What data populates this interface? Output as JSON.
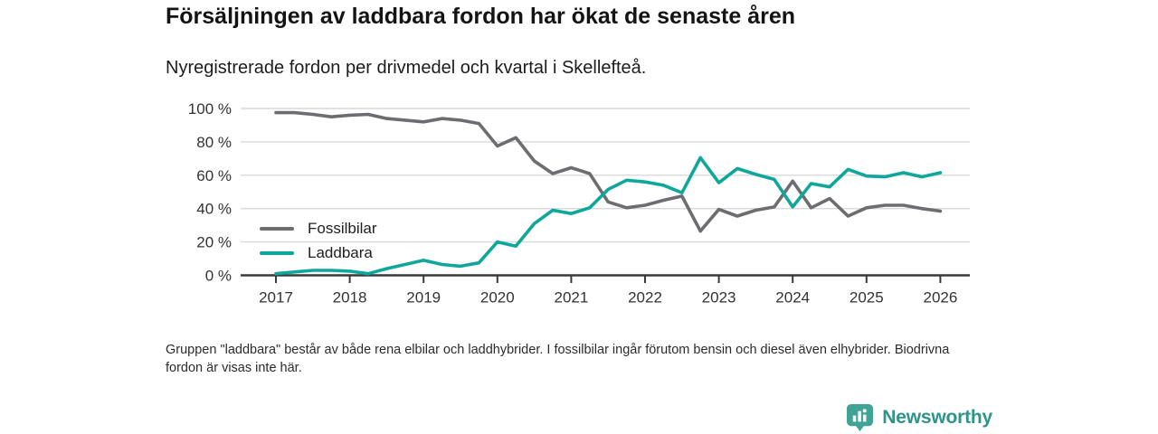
{
  "title": "Försäljningen av laddbara fordon har ökat de senaste åren",
  "subtitle": "Nyregistrerade fordon per drivmedel och kvartal i Skellefteå.",
  "footnote": "Gruppen \"laddbara\" består av både rena elbilar och laddhybrider. I fossilbilar ingår förutom bensin och diesel även elhybrider. Biodrivna fordon är visas inte här.",
  "logo": {
    "text": "Newsworthy",
    "icon": "bar-chart-pin-icon"
  },
  "colors": {
    "fossil_line": "#6d6d71",
    "laddbara_line": "#0fa79b",
    "gridline": "#d9d9d9",
    "axis": "#3a3a3e",
    "tick_label": "#333333",
    "logo_icon": "#41a396",
    "logo_text": "#2d948b"
  },
  "chart_data": {
    "type": "line",
    "x_unit": "quarter",
    "frequency": "quarterly",
    "x_start": "2017 Q1",
    "x_end": "2026 Q1",
    "ylim": [
      0,
      100
    ],
    "grid": "horizontal",
    "legend_position": "inside-left",
    "x_ticks": [
      {
        "label": "2017",
        "value": 2017
      },
      {
        "label": "2018",
        "value": 2018
      },
      {
        "label": "2019",
        "value": 2019
      },
      {
        "label": "2020",
        "value": 2020
      },
      {
        "label": "2021",
        "value": 2021
      },
      {
        "label": "2022",
        "value": 2022
      },
      {
        "label": "2023",
        "value": 2023
      },
      {
        "label": "2024",
        "value": 2024
      },
      {
        "label": "2025",
        "value": 2025
      },
      {
        "label": "2026",
        "value": 2026
      }
    ],
    "y_ticks": [
      {
        "label": "0 %",
        "value": 0
      },
      {
        "label": "20 %",
        "value": 20
      },
      {
        "label": "40 %",
        "value": 40
      },
      {
        "label": "60 %",
        "value": 60
      },
      {
        "label": "80 %",
        "value": 80
      },
      {
        "label": "100 %",
        "value": 100
      }
    ],
    "series": [
      {
        "name": "Fossilbilar",
        "color": "#6d6d71",
        "unit": "%",
        "values": [
          97.5,
          97.5,
          96.5,
          95,
          96,
          96.5,
          94,
          93,
          92,
          94,
          93,
          91,
          77.5,
          82.5,
          68.5,
          61,
          64.5,
          61,
          44,
          40.5,
          42,
          45,
          47.5,
          26.5,
          39.5,
          35.5,
          39,
          41,
          56.5,
          40.5,
          46,
          35.5,
          40.5,
          42,
          42,
          40,
          38.5
        ]
      },
      {
        "name": "Laddbara",
        "color": "#0fa79b",
        "unit": "%",
        "values": [
          1,
          2,
          3,
          3,
          2.5,
          1,
          4,
          6.5,
          9,
          6.5,
          5.5,
          7.5,
          20,
          17.5,
          31,
          39,
          37,
          40.5,
          51.5,
          57,
          56,
          54,
          49.5,
          70.5,
          55.5,
          64,
          60.5,
          57.5,
          41,
          55,
          53,
          63.5,
          59.5,
          59,
          61.5,
          59,
          61.5
        ]
      }
    ]
  }
}
